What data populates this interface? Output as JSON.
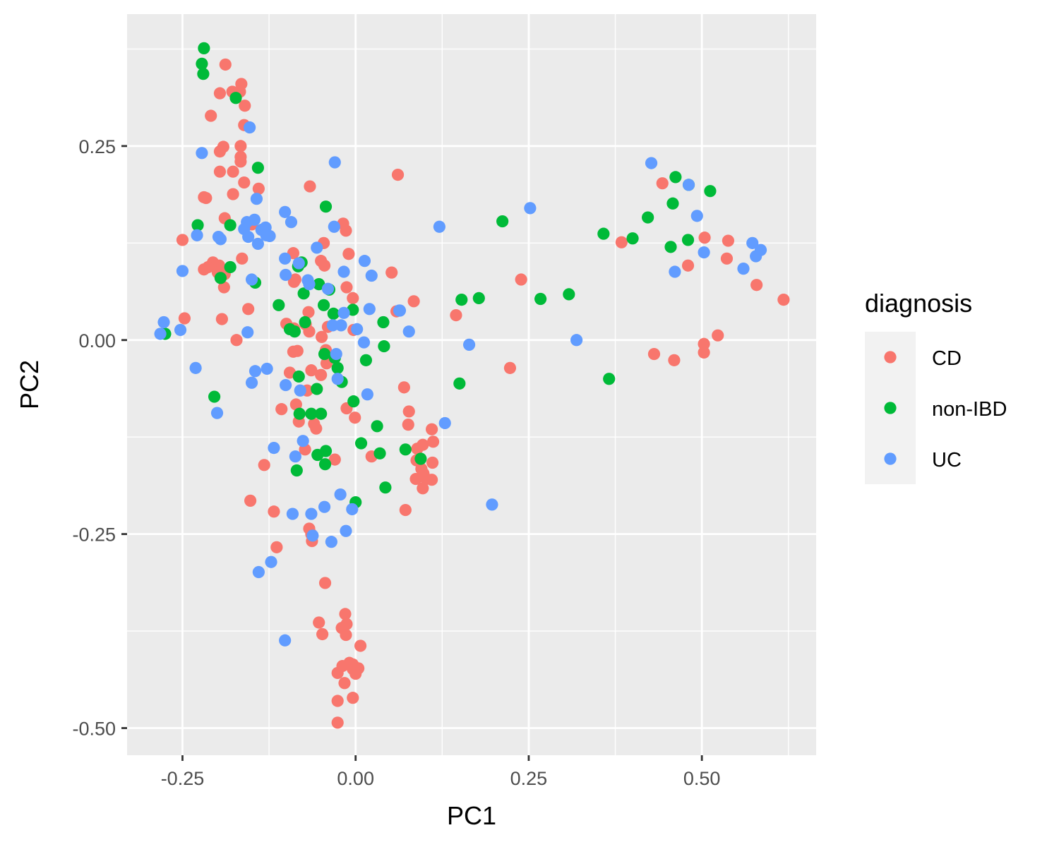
{
  "chart_data": {
    "type": "scatter",
    "title": "",
    "xlabel": "PC1",
    "ylabel": "PC2",
    "xlim": [
      -0.33,
      0.665
    ],
    "ylim": [
      -0.535,
      0.42
    ],
    "x_ticks": [
      -0.25,
      0.0,
      0.25,
      0.5
    ],
    "x_tick_labels": [
      "-0.25",
      "0.00",
      "0.25",
      "0.50"
    ],
    "x_minor": [
      -0.125,
      0.125,
      0.375,
      0.625
    ],
    "y_ticks": [
      -0.5,
      -0.25,
      0.0,
      0.25
    ],
    "y_tick_labels": [
      "-0.50",
      "-0.25",
      "0.00",
      "0.25"
    ],
    "y_minor": [
      -0.375,
      -0.125,
      0.125,
      0.375
    ],
    "grid": true,
    "legend": {
      "title": "diagnosis",
      "position": "right"
    },
    "series": [
      {
        "name": "CD",
        "color": "#F8766D",
        "points": [
          [
            -0.188,
            0.355
          ],
          [
            -0.165,
            0.33
          ],
          [
            -0.196,
            0.318
          ],
          [
            -0.178,
            0.32
          ],
          [
            -0.167,
            0.32
          ],
          [
            -0.16,
            0.302
          ],
          [
            -0.209,
            0.289
          ],
          [
            -0.161,
            0.277
          ],
          [
            -0.191,
            0.249
          ],
          [
            -0.196,
            0.243
          ],
          [
            -0.166,
            0.25
          ],
          [
            -0.166,
            0.23
          ],
          [
            -0.166,
            0.236
          ],
          [
            -0.196,
            0.217
          ],
          [
            -0.177,
            0.217
          ],
          [
            -0.161,
            0.203
          ],
          [
            -0.14,
            0.195
          ],
          [
            -0.177,
            0.188
          ],
          [
            -0.216,
            0.183
          ],
          [
            -0.219,
            0.184
          ],
          [
            -0.189,
            0.157
          ],
          [
            -0.15,
            0.149
          ],
          [
            -0.25,
            0.129
          ],
          [
            -0.206,
            0.1
          ],
          [
            -0.219,
            0.091
          ],
          [
            -0.197,
            0.096
          ],
          [
            -0.199,
            0.087
          ],
          [
            -0.213,
            0.094
          ],
          [
            -0.189,
            0.085
          ],
          [
            -0.19,
            0.068
          ],
          [
            -0.164,
            0.105
          ],
          [
            -0.155,
            0.04
          ],
          [
            -0.247,
            0.028
          ],
          [
            -0.193,
            0.027
          ],
          [
            -0.172,
            0.0
          ],
          [
            -0.066,
            0.198
          ],
          [
            -0.09,
            0.112
          ],
          [
            -0.046,
            0.125
          ],
          [
            -0.045,
            0.096
          ],
          [
            -0.05,
            0.102
          ],
          [
            -0.018,
            0.15
          ],
          [
            -0.014,
            0.141
          ],
          [
            -0.01,
            0.111
          ],
          [
            -0.089,
            0.075
          ],
          [
            -0.087,
            0.078
          ],
          [
            -0.013,
            0.068
          ],
          [
            -0.004,
            0.054
          ],
          [
            -0.068,
            0.036
          ],
          [
            -0.1,
            0.021
          ],
          [
            -0.089,
            0.015
          ],
          [
            -0.067,
            0.011
          ],
          [
            -0.072,
            0.02
          ],
          [
            -0.049,
            0.004
          ],
          [
            -0.04,
            0.017
          ],
          [
            -0.003,
            0.013
          ],
          [
            -0.09,
            -0.015
          ],
          [
            -0.084,
            -0.014
          ],
          [
            -0.043,
            -0.013
          ],
          [
            -0.042,
            -0.03
          ],
          [
            -0.095,
            -0.042
          ],
          [
            -0.064,
            -0.039
          ],
          [
            -0.05,
            -0.045
          ],
          [
            -0.07,
            -0.065
          ],
          [
            -0.086,
            -0.083
          ],
          [
            -0.107,
            -0.089
          ],
          [
            -0.082,
            -0.105
          ],
          [
            -0.06,
            -0.108
          ],
          [
            -0.057,
            -0.114
          ],
          [
            -0.013,
            -0.088
          ],
          [
            -0.001,
            -0.1
          ],
          [
            -0.073,
            -0.141
          ],
          [
            -0.03,
            -0.154
          ],
          [
            -0.132,
            -0.161
          ],
          [
            -0.152,
            -0.207
          ],
          [
            -0.118,
            -0.221
          ],
          [
            -0.067,
            -0.243
          ],
          [
            -0.064,
            -0.25
          ],
          [
            -0.063,
            -0.259
          ],
          [
            -0.114,
            -0.267
          ],
          [
            -0.044,
            -0.313
          ],
          [
            -0.053,
            -0.364
          ],
          [
            -0.048,
            -0.379
          ],
          [
            -0.015,
            -0.353
          ],
          [
            -0.013,
            -0.366
          ],
          [
            -0.02,
            -0.371
          ],
          [
            -0.014,
            -0.38
          ],
          [
            -0.026,
            -0.429
          ],
          [
            -0.019,
            -0.42
          ],
          [
            -0.016,
            -0.442
          ],
          [
            -0.009,
            -0.416
          ],
          [
            -0.004,
            -0.418
          ],
          [
            -0.004,
            -0.424
          ],
          [
            0.004,
            -0.423
          ],
          [
            0.007,
            -0.394
          ],
          [
            0.0,
            -0.43
          ],
          [
            -0.026,
            -0.465
          ],
          [
            -0.004,
            -0.461
          ],
          [
            -0.026,
            -0.493
          ],
          [
            0.061,
            0.213
          ],
          [
            0.052,
            0.087
          ],
          [
            0.084,
            0.05
          ],
          [
            0.059,
            0.037
          ],
          [
            0.07,
            -0.061
          ],
          [
            0.077,
            -0.092
          ],
          [
            0.076,
            -0.109
          ],
          [
            0.023,
            -0.15
          ],
          [
            0.11,
            -0.115
          ],
          [
            0.112,
            -0.131
          ],
          [
            0.097,
            -0.135
          ],
          [
            0.089,
            -0.14
          ],
          [
            0.088,
            -0.155
          ],
          [
            0.087,
            -0.179
          ],
          [
            0.095,
            -0.166
          ],
          [
            0.098,
            -0.172
          ],
          [
            0.102,
            -0.179
          ],
          [
            0.11,
            -0.18
          ],
          [
            0.111,
            -0.158
          ],
          [
            0.097,
            -0.191
          ],
          [
            0.072,
            -0.219
          ],
          [
            0.145,
            0.032
          ],
          [
            0.223,
            -0.036
          ],
          [
            0.239,
            0.078
          ],
          [
            0.384,
            0.126
          ],
          [
            0.443,
            0.202
          ],
          [
            0.431,
            -0.018
          ],
          [
            0.46,
            -0.026
          ],
          [
            0.48,
            0.096
          ],
          [
            0.504,
            0.132
          ],
          [
            0.538,
            0.128
          ],
          [
            0.536,
            0.105
          ],
          [
            0.579,
            0.071
          ],
          [
            0.618,
            0.052
          ],
          [
            0.503,
            -0.005
          ],
          [
            0.503,
            -0.016
          ],
          [
            0.523,
            0.006
          ]
        ]
      },
      {
        "name": "non-IBD",
        "color": "#00BA38",
        "points": [
          [
            -0.219,
            0.376
          ],
          [
            -0.222,
            0.356
          ],
          [
            -0.22,
            0.343
          ],
          [
            -0.173,
            0.312
          ],
          [
            -0.141,
            0.222
          ],
          [
            -0.228,
            0.148
          ],
          [
            -0.181,
            0.148
          ],
          [
            -0.195,
            0.08
          ],
          [
            -0.181,
            0.094
          ],
          [
            -0.145,
            0.074
          ],
          [
            -0.275,
            0.008
          ],
          [
            -0.204,
            -0.073
          ],
          [
            -0.111,
            0.045
          ],
          [
            -0.083,
            0.095
          ],
          [
            -0.078,
            0.1
          ],
          [
            -0.075,
            0.06
          ],
          [
            -0.053,
            0.072
          ],
          [
            -0.038,
            0.065
          ],
          [
            -0.046,
            0.045
          ],
          [
            -0.032,
            0.034
          ],
          [
            -0.004,
            0.039
          ],
          [
            -0.073,
            0.023
          ],
          [
            -0.095,
            0.014
          ],
          [
            -0.088,
            0.011
          ],
          [
            -0.043,
            0.172
          ],
          [
            -0.045,
            -0.018
          ],
          [
            -0.03,
            -0.023
          ],
          [
            -0.026,
            -0.036
          ],
          [
            -0.02,
            -0.054
          ],
          [
            -0.082,
            -0.047
          ],
          [
            -0.056,
            -0.063
          ],
          [
            -0.05,
            -0.095
          ],
          [
            -0.064,
            -0.095
          ],
          [
            -0.081,
            -0.095
          ],
          [
            -0.043,
            -0.143
          ],
          [
            -0.055,
            -0.148
          ],
          [
            -0.044,
            -0.16
          ],
          [
            -0.085,
            -0.168
          ],
          [
            -0.003,
            -0.079
          ],
          [
            0.015,
            -0.026
          ],
          [
            0.04,
            0.023
          ],
          [
            0.041,
            -0.008
          ],
          [
            0.031,
            -0.111
          ],
          [
            0.008,
            -0.133
          ],
          [
            0.035,
            -0.146
          ],
          [
            0.072,
            -0.141
          ],
          [
            0.043,
            -0.19
          ],
          [
            0.0,
            -0.209
          ],
          [
            0.094,
            -0.153
          ],
          [
            0.153,
            0.052
          ],
          [
            0.178,
            0.054
          ],
          [
            0.15,
            -0.056
          ],
          [
            0.212,
            0.153
          ],
          [
            0.267,
            0.053
          ],
          [
            0.308,
            0.059
          ],
          [
            0.358,
            0.137
          ],
          [
            0.366,
            -0.05
          ],
          [
            0.4,
            0.131
          ],
          [
            0.422,
            0.158
          ],
          [
            0.462,
            0.21
          ],
          [
            0.458,
            0.176
          ],
          [
            0.455,
            0.12
          ],
          [
            0.48,
            0.129
          ],
          [
            0.481,
            0.2
          ],
          [
            0.512,
            0.192
          ]
        ]
      },
      {
        "name": "UC",
        "color": "#619CFF",
        "points": [
          [
            -0.153,
            0.274
          ],
          [
            -0.222,
            0.241
          ],
          [
            -0.03,
            0.229
          ],
          [
            -0.143,
            0.182
          ],
          [
            -0.102,
            0.165
          ],
          [
            -0.093,
            0.152
          ],
          [
            -0.157,
            0.152
          ],
          [
            -0.146,
            0.155
          ],
          [
            -0.161,
            0.143
          ],
          [
            -0.136,
            0.142
          ],
          [
            -0.13,
            0.145
          ],
          [
            -0.141,
            0.124
          ],
          [
            -0.229,
            0.135
          ],
          [
            -0.195,
            0.13
          ],
          [
            -0.198,
            0.133
          ],
          [
            -0.124,
            0.134
          ],
          [
            -0.129,
            0.135
          ],
          [
            -0.155,
            0.133
          ],
          [
            -0.031,
            0.146
          ],
          [
            -0.25,
            0.089
          ],
          [
            -0.102,
            0.105
          ],
          [
            -0.056,
            0.119
          ],
          [
            -0.082,
            0.099
          ],
          [
            -0.017,
            0.088
          ],
          [
            -0.15,
            0.078
          ],
          [
            -0.101,
            0.084
          ],
          [
            -0.069,
            0.077
          ],
          [
            -0.04,
            0.066
          ],
          [
            0.013,
            0.102
          ],
          [
            0.023,
            0.083
          ],
          [
            -0.017,
            0.035
          ],
          [
            -0.067,
            0.072
          ],
          [
            -0.282,
            0.008
          ],
          [
            -0.277,
            0.023
          ],
          [
            -0.253,
            0.013
          ],
          [
            -0.156,
            0.01
          ],
          [
            0.002,
            0.014
          ],
          [
            -0.033,
            0.019
          ],
          [
            -0.021,
            0.019
          ],
          [
            -0.028,
            -0.018
          ],
          [
            0.012,
            -0.003
          ],
          [
            0.02,
            0.04
          ],
          [
            0.063,
            0.038
          ],
          [
            0.077,
            0.011
          ],
          [
            -0.231,
            -0.036
          ],
          [
            -0.145,
            -0.04
          ],
          [
            -0.15,
            -0.055
          ],
          [
            -0.128,
            -0.037
          ],
          [
            -0.101,
            -0.058
          ],
          [
            -0.08,
            -0.065
          ],
          [
            -0.026,
            -0.05
          ],
          [
            0.017,
            -0.07
          ],
          [
            -0.2,
            -0.094
          ],
          [
            -0.118,
            -0.139
          ],
          [
            -0.076,
            -0.13
          ],
          [
            -0.087,
            -0.15
          ],
          [
            -0.022,
            -0.199
          ],
          [
            -0.045,
            -0.215
          ],
          [
            -0.064,
            -0.224
          ],
          [
            -0.091,
            -0.224
          ],
          [
            -0.062,
            -0.252
          ],
          [
            -0.035,
            -0.26
          ],
          [
            -0.014,
            -0.246
          ],
          [
            -0.005,
            -0.218
          ],
          [
            -0.14,
            -0.299
          ],
          [
            -0.122,
            -0.286
          ],
          [
            -0.102,
            -0.387
          ],
          [
            0.064,
            0.038
          ],
          [
            0.121,
            0.146
          ],
          [
            0.129,
            -0.107
          ],
          [
            0.164,
            -0.006
          ],
          [
            0.197,
            -0.212
          ],
          [
            0.252,
            0.17
          ],
          [
            0.319,
            0.0
          ],
          [
            0.427,
            0.228
          ],
          [
            0.461,
            0.088
          ],
          [
            0.481,
            0.2
          ],
          [
            0.493,
            0.16
          ],
          [
            0.503,
            0.113
          ],
          [
            0.56,
            0.092
          ],
          [
            0.573,
            0.125
          ],
          [
            0.585,
            0.116
          ],
          [
            0.578,
            0.108
          ]
        ]
      }
    ]
  }
}
